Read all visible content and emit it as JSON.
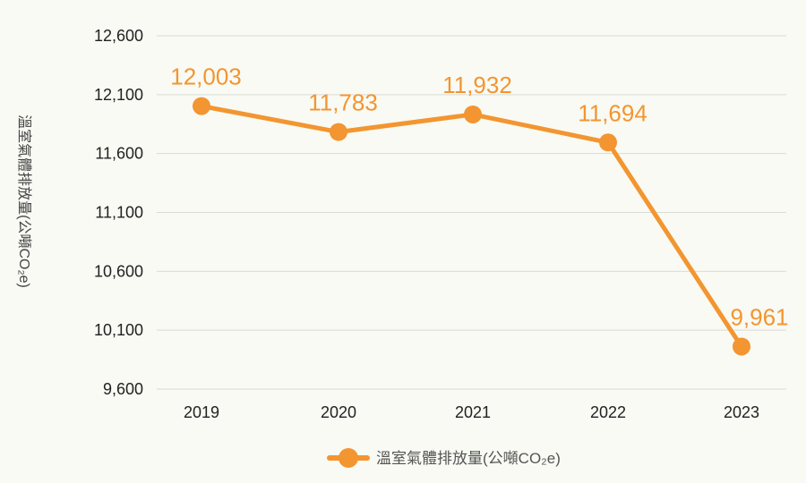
{
  "colors": {
    "series": "#f39530",
    "grid": "#d9dcd4",
    "background": "#f8faf3",
    "text": "#222222"
  },
  "chart_data": {
    "type": "line",
    "ylabel": "溫室氣體排放量(公噸CO₂e)",
    "x": [
      "2019",
      "2020",
      "2021",
      "2022",
      "2023"
    ],
    "yticks": [
      "9,600",
      "10,100",
      "10,600",
      "11,100",
      "11,600",
      "12,100",
      "12,600"
    ],
    "ylim": [
      9600,
      12600
    ],
    "grid": true,
    "legend_position": "bottom",
    "series": [
      {
        "name": "溫室氣體排放量(公噸CO₂e)",
        "values": [
          12003,
          11783,
          11932,
          11694,
          9961
        ],
        "labels": [
          "12,003",
          "11,783",
          "11,932",
          "11,694",
          "9,961"
        ]
      }
    ]
  }
}
